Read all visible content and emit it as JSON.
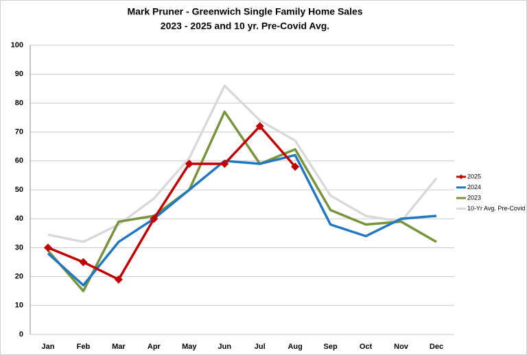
{
  "chart_data": {
    "type": "line",
    "title": "Mark Pruner - Greenwich Single Family Home Sales",
    "subtitle": "2023 - 2025 and 10 yr. Pre-Covid Avg.",
    "categories": [
      "Jan",
      "Feb",
      "Mar",
      "Apr",
      "May",
      "Jun",
      "Jul",
      "Aug",
      "Sep",
      "Oct",
      "Nov",
      "Dec"
    ],
    "series": [
      {
        "name": "2025",
        "color": "#c00000",
        "marker": "diamond",
        "values": [
          30,
          25,
          19,
          40,
          59,
          59,
          72,
          58,
          null,
          null,
          null,
          null
        ]
      },
      {
        "name": "2024",
        "color": "#1f78c1",
        "values": [
          28,
          17,
          32,
          40,
          50,
          60,
          59,
          62,
          38,
          34,
          40,
          41
        ]
      },
      {
        "name": "2023",
        "color": "#77933c",
        "values": [
          29,
          15,
          39,
          41,
          50,
          77,
          59,
          64,
          43,
          38,
          39,
          32
        ]
      },
      {
        "name": "10-Yr Avg. Pre-Covid",
        "color": "#d9d9d9",
        "values": [
          34.5,
          32,
          38,
          47,
          61,
          86,
          74,
          67,
          48,
          41,
          39,
          54
        ]
      }
    ],
    "ylim": [
      0,
      100
    ],
    "yticks": [
      0,
      10,
      20,
      30,
      40,
      50,
      60,
      70,
      80,
      90,
      100
    ],
    "grid": true,
    "legend": "right"
  }
}
